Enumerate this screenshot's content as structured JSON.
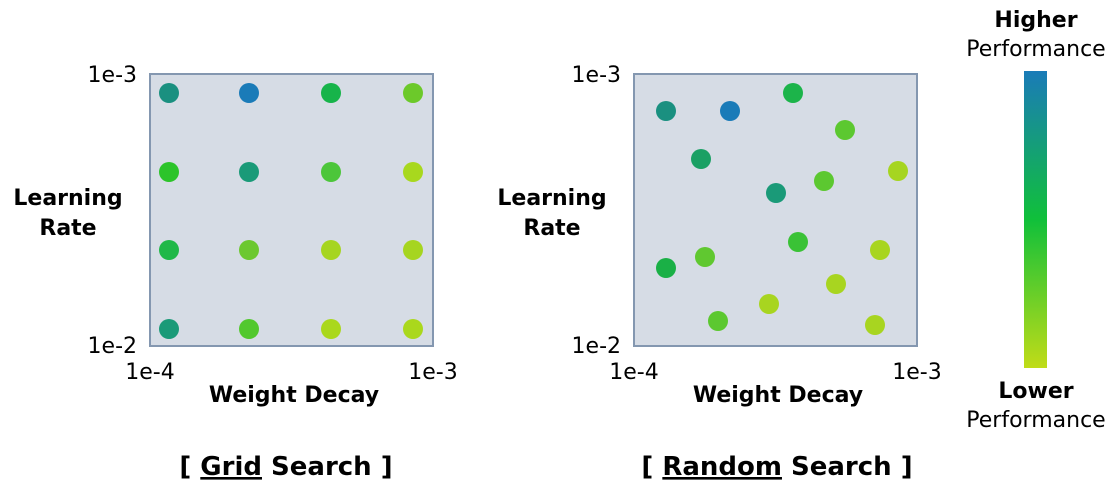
{
  "panels": [
    {
      "y_top": "1e-3",
      "y_bottom": "1e-2",
      "x_left": "1e-4",
      "x_right": "1e-3",
      "y_label": [
        "Learning",
        "Rate"
      ],
      "x_label": "Weight Decay",
      "caption": {
        "open": "[",
        "keyword": "Grid",
        "rest": "Search ]"
      }
    },
    {
      "y_top": "1e-3",
      "y_bottom": "1e-2",
      "x_left": "1e-4",
      "x_right": "1e-3",
      "y_label": [
        "Learning",
        "Rate"
      ],
      "x_label": "Weight Decay",
      "caption": {
        "open": "[",
        "keyword": "Random",
        "rest": "Search ]"
      }
    }
  ],
  "legend": {
    "higher": "Higher",
    "higher_sub": "Performance",
    "lower": "Lower",
    "lower_sub": "Performance"
  }
}
